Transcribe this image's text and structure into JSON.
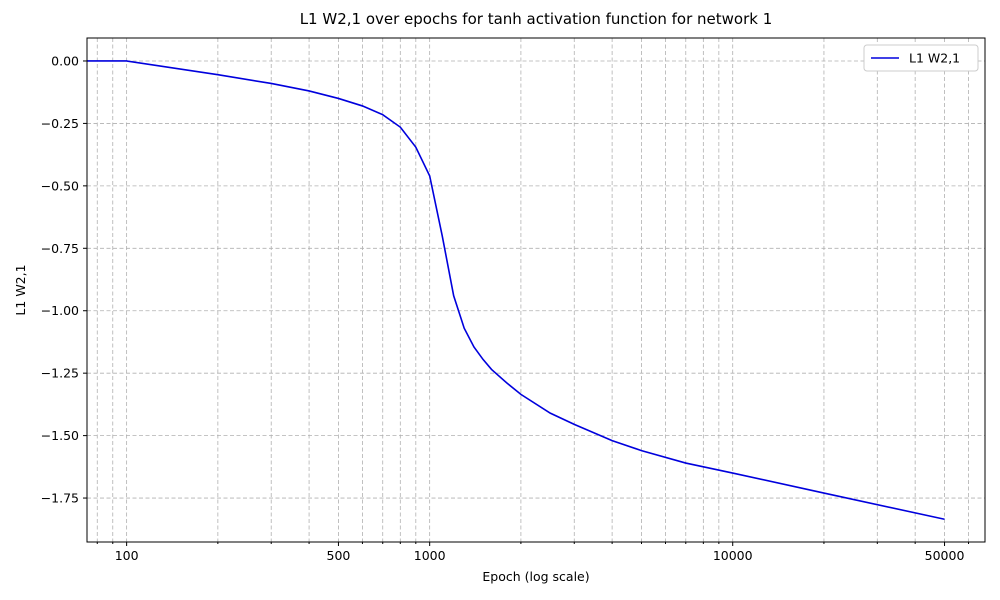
{
  "chart_data": {
    "type": "line",
    "title": "L1 W2,1 over epochs for tanh activation function for network 1",
    "x_label": "Epoch (log scale)",
    "y_label": "L1 W2,1",
    "x": [
      74,
      100,
      200,
      300,
      400,
      500,
      600,
      700,
      800,
      900,
      1000,
      1100,
      1200,
      1300,
      1400,
      1500,
      1600,
      1800,
      2000,
      2500,
      3000,
      4000,
      5000,
      7000,
      10000,
      20000,
      50000
    ],
    "series": [
      {
        "name": "L1 W2,1",
        "color": "#0000dd",
        "values": [
          0,
          0,
          -0.055,
          -0.09,
          -0.12,
          -0.15,
          -0.18,
          -0.215,
          -0.265,
          -0.345,
          -0.46,
          -0.7,
          -0.94,
          -1.07,
          -1.145,
          -1.195,
          -1.235,
          -1.29,
          -1.335,
          -1.41,
          -1.455,
          -1.52,
          -1.56,
          -1.61,
          -1.65,
          -1.73,
          -1.835
        ]
      }
    ],
    "x_scale": "log",
    "xlim": [
      74,
      68000
    ],
    "xticks": [
      100,
      500,
      1000,
      10000,
      50000
    ],
    "xminorticks": [
      80,
      90,
      200,
      300,
      400,
      600,
      700,
      800,
      900,
      2000,
      3000,
      4000,
      5000,
      6000,
      7000,
      8000,
      9000,
      20000,
      30000,
      40000,
      60000
    ],
    "ylim": [
      -1.926,
      0.092
    ],
    "yticks": [
      {
        "value": 0,
        "label": "0.00"
      },
      {
        "value": -0.25,
        "label": "−0.25"
      },
      {
        "value": -0.5,
        "label": "−0.50"
      },
      {
        "value": -0.75,
        "label": "−0.75"
      },
      {
        "value": -1,
        "label": "−1.00"
      },
      {
        "value": -1.25,
        "label": "−1.25"
      },
      {
        "value": -1.5,
        "label": "−1.50"
      },
      {
        "value": -1.75,
        "label": "−1.75"
      }
    ],
    "grid": true,
    "legend": "upper right"
  }
}
